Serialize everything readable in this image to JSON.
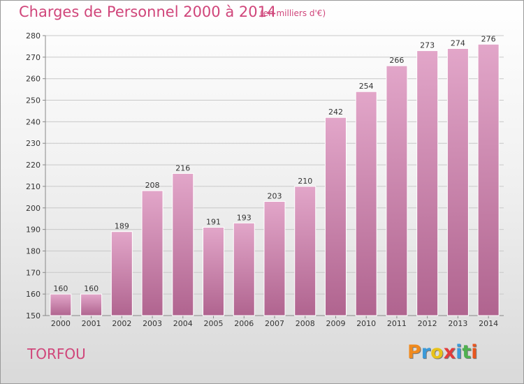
{
  "header": {
    "title": "Charges de Personnel 2000 à 2014",
    "unit": "(en milliers d'€)"
  },
  "footer": {
    "city": "TORFOU",
    "logo_text": "Proxiti",
    "logo_colors": [
      "#f08a1e",
      "#3b9ad9",
      "#e8c21a",
      "#e23b3b",
      "#3b9ad9",
      "#4fb04f",
      "#e8551e"
    ]
  },
  "colors": {
    "title": "#d0457a",
    "bar_top": "#e2a6c9",
    "bar_bottom": "#b0648f"
  },
  "chart_data": {
    "type": "bar",
    "title": "Charges de Personnel 2000 à 2014",
    "xlabel": "",
    "ylabel": "",
    "categories": [
      "2000",
      "2001",
      "2002",
      "2003",
      "2004",
      "2005",
      "2006",
      "2007",
      "2008",
      "2009",
      "2010",
      "2011",
      "2012",
      "2013",
      "2014"
    ],
    "values": [
      160,
      160,
      189,
      208,
      216,
      191,
      193,
      203,
      210,
      242,
      254,
      266,
      273,
      274,
      276
    ],
    "ylim": [
      150,
      280
    ],
    "yticks": [
      150,
      160,
      170,
      180,
      190,
      200,
      210,
      220,
      230,
      240,
      250,
      260,
      270,
      280
    ],
    "grid": true
  }
}
